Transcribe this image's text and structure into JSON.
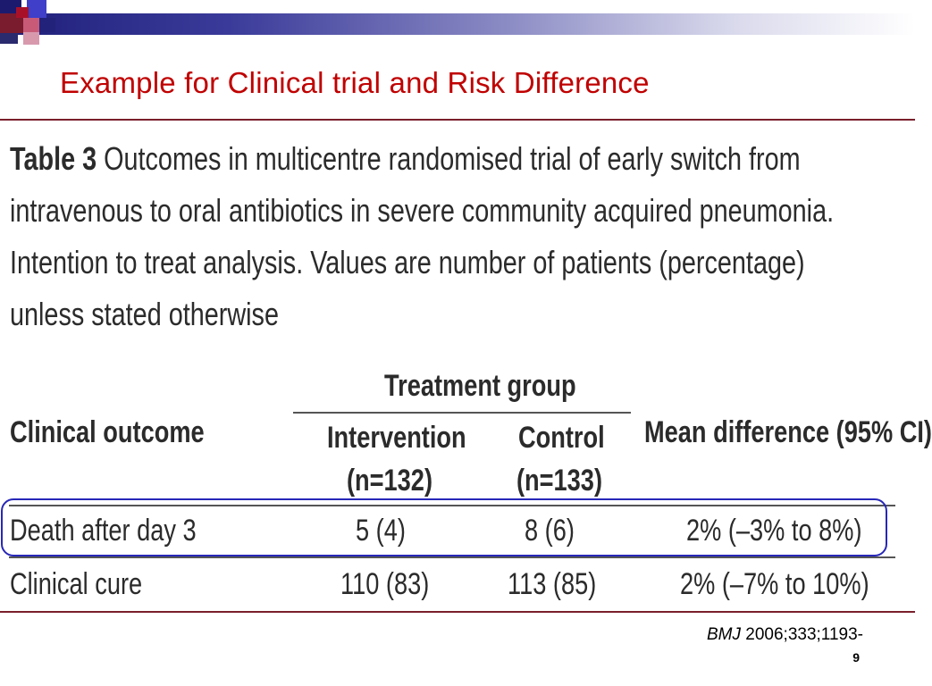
{
  "slide": {
    "title": "Example for Clinical trial and Risk Difference",
    "page_number": "9",
    "citation": {
      "journal": "BMJ",
      "rest": " 2006;333;1193-"
    }
  },
  "table": {
    "caption_label": "Table 3",
    "caption_lines": [
      " Outcomes in multicentre randomised trial of early switch from",
      "intravenous to oral antibiotics in severe community acquired pneumonia.",
      "Intention to treat analysis. Values are number of patients (percentage)",
      "unless stated otherwise"
    ],
    "group_header": "Treatment group",
    "columns": {
      "outcome": "Clinical outcome",
      "intervention": "Intervention",
      "intervention_n": "(n=132)",
      "control": "Control",
      "control_n": "(n=133)",
      "difference": "Mean difference (95% CI)"
    },
    "rows": [
      {
        "outcome": "Death after day 3",
        "intervention": "5  (4)",
        "control": "8  (6)",
        "difference": "2%  (–3% to 8%)"
      },
      {
        "outcome": "Clinical cure",
        "intervention": "110  (83)",
        "control": "113  (85)",
        "difference": "2%  (–7% to 10%)"
      }
    ]
  }
}
